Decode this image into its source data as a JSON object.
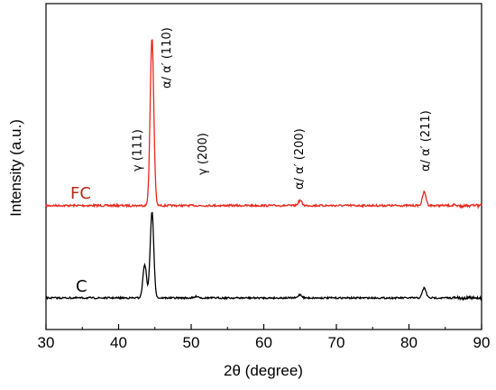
{
  "chart_data": {
    "type": "line",
    "xlabel": "2θ (degree)",
    "ylabel": "Intensity (a.u.)",
    "xlim": [
      30,
      90
    ],
    "x_ticks": [
      30,
      40,
      50,
      60,
      70,
      80,
      90
    ],
    "y_ticks_shown": false,
    "series": [
      {
        "name": "FC",
        "color": "#e8261c",
        "baseline": 0.55,
        "peaks": [
          {
            "x": 44.6,
            "height": 1.0
          },
          {
            "x": 65.0,
            "height": 0.03
          },
          {
            "x": 82.1,
            "height": 0.08
          }
        ]
      },
      {
        "name": "C",
        "color": "#000000",
        "baseline": 0.0,
        "peaks": [
          {
            "x": 43.6,
            "height": 0.2
          },
          {
            "x": 44.6,
            "height": 0.51
          },
          {
            "x": 50.8,
            "height": 0.01
          },
          {
            "x": 65.0,
            "height": 0.02
          },
          {
            "x": 82.1,
            "height": 0.06
          }
        ]
      }
    ],
    "annotations": [
      {
        "text": "γ (111)",
        "x": 42.5
      },
      {
        "text": "α/ α′  (110)",
        "x": 46.5
      },
      {
        "text": "γ (200)",
        "x": 51.5
      },
      {
        "text": "α/ α′  (200)",
        "x": 64.8
      },
      {
        "text": "α/ α′  (211)",
        "x": 82.2
      }
    ]
  }
}
